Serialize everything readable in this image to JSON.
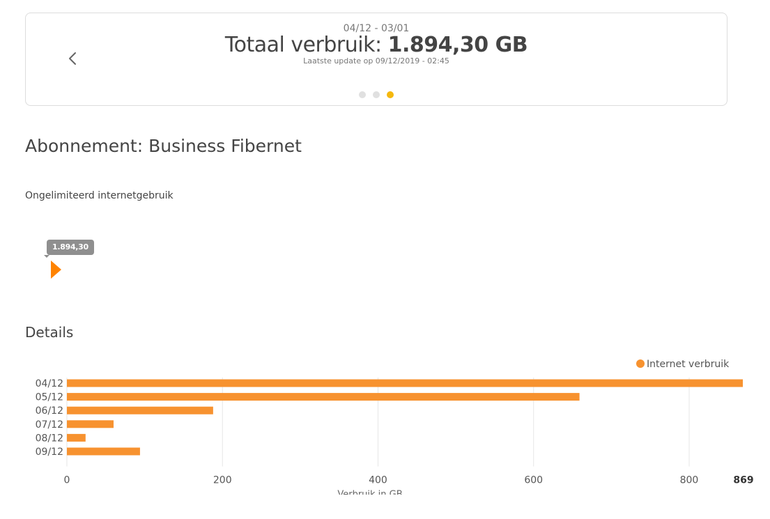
{
  "header": {
    "date_range": "04/12 - 03/01",
    "total_label": "Totaal verbruik: ",
    "total_value": "1.894,30 GB",
    "last_update": "Laatste update op 09/12/2019 - 02:45",
    "carousel_active_index": 2,
    "carousel_count": 3
  },
  "subscription": {
    "label": "Abonnement:",
    "name": "Business Fibernet",
    "description": "Ongelimiteerd internetgebruik",
    "usage_bubble": "1.894,30"
  },
  "details": {
    "heading": "Details"
  },
  "colors": {
    "bar": "#f7922f",
    "active_dot": "#f5b80e",
    "marker": "#ff8300"
  },
  "icons": {
    "prev": "chevron-left-icon"
  },
  "chart_data": {
    "type": "bar",
    "orientation": "horizontal",
    "categories": [
      "04/12",
      "05/12",
      "06/12",
      "07/12",
      "08/12",
      "09/12"
    ],
    "series": [
      {
        "name": "Internet verbruik",
        "values": [
          869,
          659,
          188,
          60,
          24,
          94
        ]
      }
    ],
    "xlabel": "Verbruik in GB",
    "xlim": [
      0,
      869
    ],
    "x_ticks": [
      0,
      200,
      400,
      600,
      800
    ],
    "max_label": "869",
    "grid": true,
    "legend": "top-right"
  }
}
